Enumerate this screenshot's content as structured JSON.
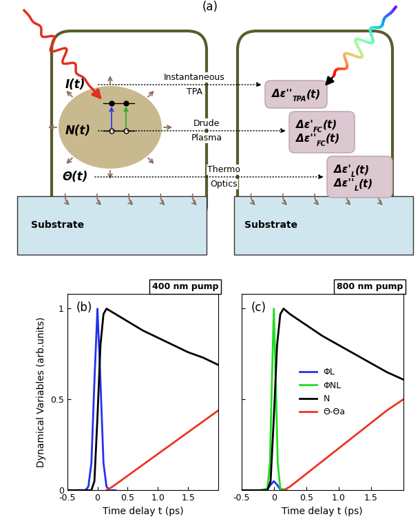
{
  "diagram": {
    "panel_label": "(a)",
    "variables": [
      "I(t)",
      "N(t)",
      "Θ(t)"
    ],
    "links": [
      [
        "Instantaneous",
        "TPA"
      ],
      [
        "Drude",
        "Plasma"
      ],
      [
        "Thermo",
        "Optics"
      ]
    ],
    "boxes": [
      [
        {
          "main": "Δε''",
          "sub": "TPA",
          "arg": "(t)"
        }
      ],
      [
        {
          "main": "Δε'",
          "sub": "FC",
          "arg": "(t)"
        },
        {
          "main": "Δε''",
          "sub": "FC",
          "arg": "(t)"
        }
      ],
      [
        {
          "main": "Δε'",
          "sub": "L",
          "arg": "(t)"
        },
        {
          "main": "Δε''",
          "sub": "L",
          "arg": "(t)"
        }
      ]
    ],
    "substrates": [
      "Substrate",
      "Substrate"
    ]
  },
  "chart_data": [
    {
      "type": "line",
      "title": "400 nm pump",
      "panel_label": "(b)",
      "xlabel": "Time delay t (ps)",
      "ylabel": "Dynamical Variables (arb.units)",
      "xlim": [
        -0.5,
        2.0
      ],
      "xticks": [
        -0.5,
        0,
        0.5,
        {
          "value": 1,
          "label": "1.0"
        },
        1.5
      ],
      "ylim": [
        0,
        1.08
      ],
      "yticks": [
        0,
        0.5,
        1
      ],
      "series": [
        {
          "color": "#2233ee",
          "x": [
            -0.3,
            -0.2,
            -0.15,
            -0.1,
            -0.05,
            0,
            0.05,
            0.1,
            0.15,
            0.2,
            0.3
          ],
          "values": [
            0,
            0,
            0.02,
            0.15,
            0.6,
            1,
            0.6,
            0.15,
            0.02,
            0,
            0
          ]
        },
        {
          "color": "#000000",
          "x": [
            -0.5,
            -0.1,
            -0.05,
            0,
            0.05,
            0.1,
            0.15,
            0.25,
            0.5,
            0.75,
            1.0,
            1.25,
            1.5,
            1.75,
            2.0
          ],
          "values": [
            0,
            0,
            0.05,
            0.4,
            0.8,
            0.97,
            1.0,
            0.98,
            0.93,
            0.88,
            0.84,
            0.8,
            0.76,
            0.73,
            0.69
          ]
        },
        {
          "color": "#ee3322",
          "x": [
            0.15,
            0.25,
            0.5,
            0.75,
            1.0,
            1.25,
            1.5,
            1.75,
            2.0
          ],
          "values": [
            0,
            0.02,
            0.08,
            0.14,
            0.2,
            0.26,
            0.32,
            0.38,
            0.44
          ]
        }
      ]
    },
    {
      "type": "line",
      "title": "800 nm pump",
      "panel_label": "(c)",
      "xlabel": "Time delay t (ps)",
      "xlim": [
        -0.5,
        2.0
      ],
      "xticks": [
        -0.5,
        0,
        0.5,
        {
          "value": 1,
          "label": "1.0"
        },
        1.5
      ],
      "ylim": [
        0,
        1.08
      ],
      "yticks": [
        0,
        0.5,
        1
      ],
      "tick_labels": "x",
      "legend": "center",
      "series": [
        {
          "name": "ΦL",
          "color": "#2233ee",
          "x": [
            -0.2,
            -0.1,
            -0.05,
            0,
            0.05,
            0.1,
            0.2
          ],
          "values": [
            0,
            0.005,
            0.03,
            0.05,
            0.03,
            0.005,
            0
          ]
        },
        {
          "name": "ΦNL",
          "color": "#22dd22",
          "x": [
            -0.2,
            -0.1,
            -0.06,
            -0.03,
            0,
            0.03,
            0.06,
            0.1,
            0.2
          ],
          "values": [
            0,
            0.01,
            0.15,
            0.6,
            1,
            0.6,
            0.15,
            0.01,
            0
          ]
        },
        {
          "name": "N",
          "color": "#000000",
          "x": [
            -0.5,
            -0.1,
            -0.05,
            0,
            0.05,
            0.1,
            0.15,
            0.25,
            0.5,
            0.75,
            1.0,
            1.25,
            1.5,
            1.75,
            2.0
          ],
          "values": [
            0,
            0,
            0.05,
            0.4,
            0.8,
            0.97,
            1.0,
            0.97,
            0.91,
            0.85,
            0.8,
            0.75,
            0.7,
            0.65,
            0.61
          ]
        },
        {
          "name": "Θ-Θa",
          "color": "#ee3322",
          "x": [
            0.15,
            0.25,
            0.5,
            0.75,
            1.0,
            1.25,
            1.5,
            1.75,
            2.0
          ],
          "values": [
            0,
            0.02,
            0.09,
            0.16,
            0.23,
            0.3,
            0.37,
            0.44,
            0.5
          ]
        }
      ]
    }
  ]
}
